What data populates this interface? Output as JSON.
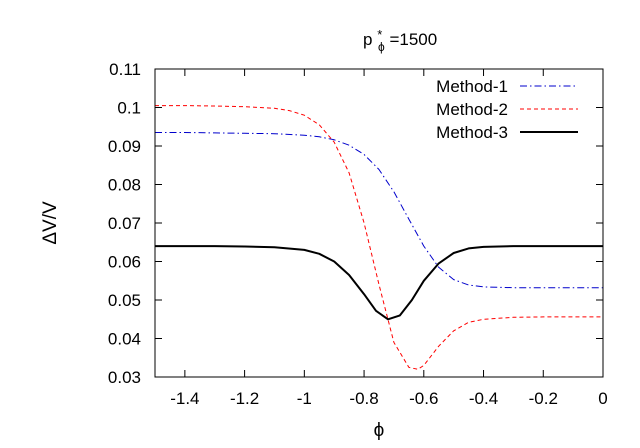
{
  "chart_data": {
    "type": "line",
    "title": "p",
    "title_sub": "ϕ",
    "title_sup": "*",
    "title_rest": "=1500",
    "xlabel": "ϕ",
    "ylabel": "ΔV/V",
    "xlim": [
      -1.5,
      0
    ],
    "ylim": [
      0.03,
      0.11
    ],
    "xticks": [
      -1.4,
      -1.2,
      -1,
      -0.8,
      -0.6,
      -0.4,
      -0.2,
      0
    ],
    "xtick_labels": [
      "-1.4",
      "-1.2",
      "-1",
      "-0.8",
      "-0.6",
      "-0.4",
      "-0.2",
      "0"
    ],
    "yticks": [
      0.03,
      0.04,
      0.05,
      0.06,
      0.07,
      0.08,
      0.09,
      0.1,
      0.11
    ],
    "ytick_labels": [
      "0.03",
      "0.04",
      "0.05",
      "0.06",
      "0.07",
      "0.08",
      "0.09",
      "0.1",
      "0.11"
    ],
    "grid": false,
    "legend_position": "top-right",
    "series": [
      {
        "name": "Method-1",
        "color": "#0000cc",
        "dash": "dash-dot",
        "x": [
          -1.5,
          -1.4,
          -1.3,
          -1.2,
          -1.1,
          -1.0,
          -0.95,
          -0.9,
          -0.85,
          -0.8,
          -0.75,
          -0.7,
          -0.65,
          -0.6,
          -0.55,
          -0.5,
          -0.45,
          -0.4,
          -0.3,
          -0.2,
          -0.1,
          0.0
        ],
        "y": [
          0.0935,
          0.0935,
          0.0934,
          0.0933,
          0.0932,
          0.0928,
          0.0924,
          0.0916,
          0.0902,
          0.0878,
          0.0839,
          0.0781,
          0.071,
          0.064,
          0.0585,
          0.0553,
          0.0539,
          0.0534,
          0.0532,
          0.0532,
          0.0532,
          0.0532
        ]
      },
      {
        "name": "Method-2",
        "color": "#ff0000",
        "dash": "dashed",
        "x": [
          -1.5,
          -1.4,
          -1.3,
          -1.2,
          -1.1,
          -1.05,
          -1.0,
          -0.95,
          -0.9,
          -0.85,
          -0.8,
          -0.75,
          -0.7,
          -0.65,
          -0.62,
          -0.6,
          -0.55,
          -0.5,
          -0.45,
          -0.4,
          -0.3,
          -0.2,
          -0.1,
          0.0
        ],
        "y": [
          0.1005,
          0.1005,
          0.1004,
          0.1002,
          0.0998,
          0.0992,
          0.098,
          0.0955,
          0.091,
          0.083,
          0.07,
          0.054,
          0.039,
          0.0325,
          0.032,
          0.033,
          0.038,
          0.042,
          0.0442,
          0.045,
          0.0455,
          0.0456,
          0.0456,
          0.0456
        ]
      },
      {
        "name": "Method-3",
        "color": "#000000",
        "dash": "solid",
        "x": [
          -1.5,
          -1.4,
          -1.3,
          -1.2,
          -1.1,
          -1.0,
          -0.95,
          -0.9,
          -0.85,
          -0.8,
          -0.76,
          -0.72,
          -0.68,
          -0.64,
          -0.6,
          -0.55,
          -0.5,
          -0.45,
          -0.4,
          -0.3,
          -0.2,
          -0.1,
          0.0
        ],
        "y": [
          0.064,
          0.064,
          0.064,
          0.0639,
          0.0637,
          0.063,
          0.062,
          0.06,
          0.0565,
          0.0515,
          0.0472,
          0.045,
          0.046,
          0.05,
          0.055,
          0.0595,
          0.0622,
          0.0634,
          0.0638,
          0.064,
          0.064,
          0.064,
          0.064
        ]
      }
    ]
  }
}
